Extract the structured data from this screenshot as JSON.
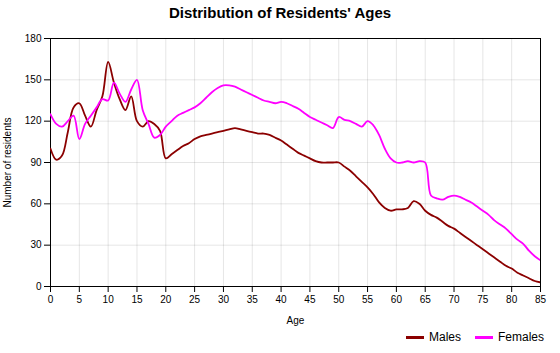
{
  "chart_data": {
    "type": "line",
    "title": "Distribution of Residents' Ages",
    "xlabel": "Age",
    "ylabel": "Number of residents",
    "x": [
      0,
      1,
      2,
      3,
      4,
      5,
      6,
      7,
      8,
      9,
      10,
      11,
      12,
      13,
      14,
      15,
      16,
      17,
      18,
      19,
      20,
      21,
      22,
      23,
      24,
      25,
      26,
      27,
      28,
      29,
      30,
      31,
      32,
      33,
      34,
      35,
      36,
      37,
      38,
      39,
      40,
      41,
      42,
      43,
      44,
      45,
      46,
      47,
      48,
      49,
      50,
      51,
      52,
      53,
      54,
      55,
      56,
      57,
      58,
      59,
      60,
      61,
      62,
      63,
      64,
      65,
      66,
      67,
      68,
      69,
      70,
      71,
      72,
      73,
      74,
      75,
      76,
      77,
      78,
      79,
      80,
      81,
      82,
      83,
      84,
      85
    ],
    "series": [
      {
        "name": "Males",
        "color": "#8b0000",
        "values": [
          100,
          92,
          95,
          112,
          130,
          133,
          124,
          116,
          128,
          138,
          163,
          148,
          136,
          128,
          138,
          120,
          116,
          120,
          118,
          113,
          93,
          96,
          99,
          102,
          104,
          107,
          109,
          110,
          111,
          112,
          113,
          114,
          115,
          114,
          113,
          112,
          111,
          111,
          110,
          108,
          106,
          103,
          100,
          97,
          95,
          93,
          91,
          90,
          90,
          90,
          90,
          87,
          84,
          80,
          76,
          72,
          67,
          61,
          57,
          55,
          56,
          56,
          57,
          62,
          60,
          55,
          52,
          50,
          47,
          44,
          42,
          39,
          36,
          33,
          30,
          27,
          24,
          21,
          18,
          15,
          13,
          10,
          8,
          6,
          4,
          3
        ]
      },
      {
        "name": "Females",
        "color": "#ff00ff",
        "values": [
          125,
          118,
          116,
          120,
          124,
          107,
          118,
          124,
          130,
          136,
          135,
          148,
          140,
          134,
          143,
          150,
          128,
          118,
          108,
          110,
          116,
          120,
          124,
          126,
          128,
          130,
          133,
          137,
          141,
          144,
          146,
          146,
          145,
          143,
          141,
          139,
          137,
          135,
          134,
          133,
          134,
          133,
          131,
          129,
          126,
          123,
          121,
          119,
          117,
          115,
          123,
          121,
          120,
          118,
          116,
          120,
          117,
          110,
          100,
          93,
          90,
          90,
          91,
          90,
          91,
          90,
          66,
          64,
          63,
          65,
          66,
          65,
          63,
          61,
          58,
          55,
          52,
          48,
          45,
          42,
          38,
          34,
          31,
          26,
          22,
          19
        ]
      }
    ],
    "xlim": [
      0,
      85
    ],
    "xticks": [
      0,
      5,
      10,
      15,
      20,
      25,
      30,
      35,
      40,
      45,
      50,
      55,
      60,
      65,
      70,
      75,
      80,
      85
    ],
    "ylim": [
      0,
      180
    ],
    "yticks": [
      0,
      30,
      60,
      90,
      120,
      150,
      180
    ],
    "grid": true,
    "legend": "lower right"
  }
}
